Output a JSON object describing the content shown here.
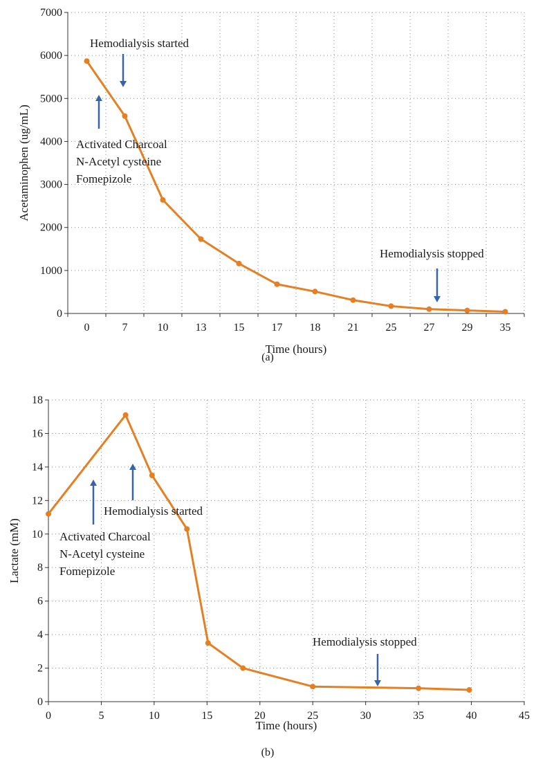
{
  "colors": {
    "series": "#e67e22",
    "arrow": "#3a64a8"
  },
  "chart_data": [
    {
      "panel": "a",
      "caption": "(a)",
      "type": "line",
      "xlabel": "Time (hours)",
      "ylabel": "Acetaminophen (ug/mL)",
      "x_scale": "categorical",
      "categories": [
        "0",
        "7",
        "10",
        "13",
        "15",
        "17",
        "18",
        "21",
        "25",
        "27",
        "29",
        "35"
      ],
      "yticks": [
        0,
        1000,
        2000,
        3000,
        4000,
        5000,
        6000,
        7000
      ],
      "ylim": [
        0,
        7000
      ],
      "grid": true,
      "series": [
        {
          "values": [
            5870,
            4590,
            2640,
            1730,
            1160,
            680,
            510,
            310,
            170,
            100,
            70,
            40
          ]
        }
      ],
      "annotations": [
        {
          "text": "Hemodialysis started",
          "arrow": "down",
          "x": "7"
        },
        {
          "text": "Activated Charcoal\nN-Acetyl cysteine\nFomepizole",
          "arrow": "up",
          "x": "0"
        },
        {
          "text": "Hemodialysis stopped",
          "arrow": "down",
          "x": "27"
        }
      ]
    },
    {
      "panel": "b",
      "caption": "(b)",
      "type": "line",
      "xlabel": "Time (hours)",
      "ylabel": "Lactate (mM)",
      "x_scale": "linear",
      "xlim": [
        0,
        45
      ],
      "xticks": [
        0,
        5,
        10,
        15,
        20,
        25,
        30,
        35,
        40,
        45
      ],
      "ylim": [
        0,
        18
      ],
      "yticks": [
        0,
        2,
        4,
        6,
        8,
        10,
        12,
        14,
        16,
        18
      ],
      "grid": true,
      "series": [
        {
          "x": [
            0,
            7.3,
            9.8,
            13.1,
            15.1,
            18.4,
            25,
            35,
            39.8
          ],
          "values": [
            11.2,
            17.1,
            13.5,
            10.3,
            3.5,
            2.0,
            0.9,
            0.8,
            0.7
          ]
        }
      ],
      "annotations": [
        {
          "text": "Hemodialysis started",
          "arrow": "up",
          "x": 7.9
        },
        {
          "text": "Activated Charcoal\nN-Acetyl cysteine\nFomepizole",
          "arrow": "up",
          "x": 4.3
        },
        {
          "text": "Hemodialysis stopped",
          "arrow": "down",
          "x": 30.8
        }
      ]
    }
  ]
}
